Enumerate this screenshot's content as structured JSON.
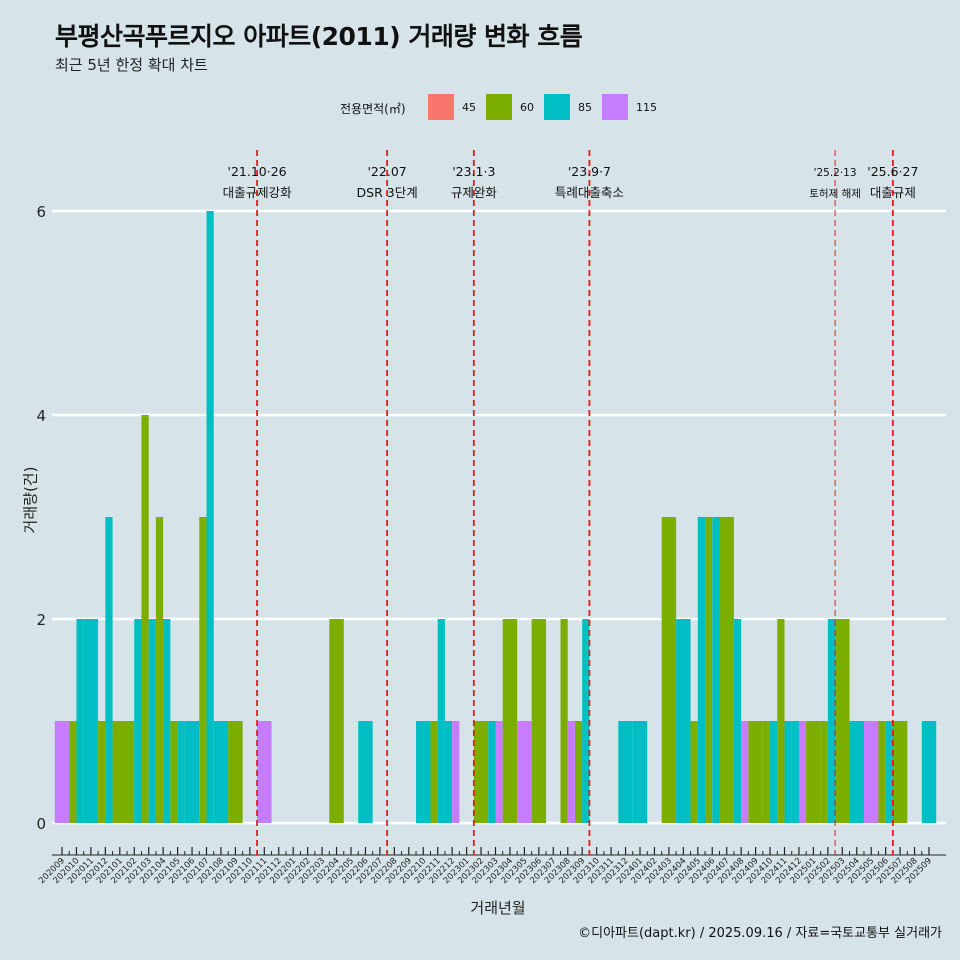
{
  "title": "부평산곡푸르지오 아파트(2011) 거래량 변화 흐름",
  "subtitle": "최근 5년 한정 확대 차트",
  "caption": "©디아파트(dapt.kr) / 2025.09.16 / 자료=국토교통부 실거래가",
  "legend": {
    "title": "전용면적(㎡)",
    "items": [
      {
        "label": "45",
        "color": "#F8766D"
      },
      {
        "label": "60",
        "color": "#7CAE00"
      },
      {
        "label": "85",
        "color": "#00BFC4"
      },
      {
        "label": "115",
        "color": "#C77CFF"
      }
    ]
  },
  "chart_data": {
    "type": "bar",
    "xlabel": "거래년월",
    "ylabel": "거래량(건)",
    "ylim": [
      0,
      6
    ],
    "yticks": [
      0,
      2,
      4,
      6
    ],
    "grid": "horizontal",
    "legend_position": "top",
    "categories": [
      "202009",
      "202010",
      "202011",
      "202012",
      "202101",
      "202102",
      "202103",
      "202104",
      "202105",
      "202106",
      "202107",
      "202108",
      "202109",
      "202110",
      "202111",
      "202112",
      "202201",
      "202202",
      "202203",
      "202204",
      "202205",
      "202206",
      "202207",
      "202208",
      "202209",
      "202210",
      "202211",
      "202212",
      "202301",
      "202302",
      "202303",
      "202304",
      "202305",
      "202306",
      "202307",
      "202308",
      "202309",
      "202310",
      "202311",
      "202312",
      "202401",
      "202402",
      "202403",
      "202404",
      "202405",
      "202406",
      "202407",
      "202408",
      "202409",
      "202410",
      "202411",
      "202412",
      "202501",
      "202502",
      "202503",
      "202504",
      "202505",
      "202506",
      "202507",
      "202508",
      "202509"
    ],
    "series": [
      {
        "name": "45",
        "values": [
          0,
          0,
          0,
          0,
          0,
          0,
          0,
          0,
          0,
          0,
          0,
          0,
          0,
          0,
          0,
          0,
          0,
          0,
          0,
          0,
          0,
          0,
          0,
          0,
          0,
          0,
          0,
          0,
          0,
          0,
          0,
          0,
          0,
          0,
          0,
          0,
          0,
          0,
          0,
          0,
          0,
          0,
          0,
          0,
          0,
          0,
          0,
          0,
          0,
          0,
          0,
          0,
          0,
          0,
          0,
          0,
          0,
          0,
          0,
          0,
          0
        ]
      },
      {
        "name": "60",
        "values": [
          0,
          1,
          0,
          1,
          1,
          1,
          4,
          3,
          1,
          0,
          3,
          0,
          1,
          0,
          0,
          0,
          0,
          0,
          0,
          2,
          0,
          0,
          0,
          0,
          0,
          0,
          1,
          0,
          0,
          1,
          0,
          2,
          0,
          2,
          0,
          2,
          1,
          0,
          0,
          0,
          0,
          0,
          3,
          0,
          1,
          3,
          3,
          0,
          1,
          1,
          2,
          0,
          1,
          1,
          2,
          0,
          0,
          1,
          1,
          0,
          0
        ]
      },
      {
        "name": "85",
        "values": [
          0,
          2,
          2,
          3,
          0,
          2,
          2,
          2,
          1,
          1,
          6,
          1,
          0,
          0,
          0,
          0,
          0,
          0,
          0,
          0,
          0,
          1,
          0,
          0,
          0,
          1,
          2,
          1,
          0,
          0,
          1,
          0,
          0,
          0,
          0,
          0,
          2,
          0,
          0,
          1,
          1,
          0,
          0,
          2,
          3,
          3,
          0,
          2,
          0,
          1,
          1,
          1,
          0,
          2,
          0,
          1,
          0,
          1,
          0,
          0,
          1
        ]
      },
      {
        "name": "115",
        "values": [
          1,
          0,
          0,
          0,
          0,
          0,
          0,
          0,
          0,
          0,
          0,
          0,
          0,
          0,
          1,
          0,
          0,
          0,
          0,
          0,
          0,
          0,
          0,
          0,
          0,
          0,
          0,
          1,
          0,
          0,
          1,
          0,
          1,
          0,
          0,
          1,
          0,
          0,
          0,
          0,
          0,
          0,
          0,
          0,
          0,
          0,
          0,
          1,
          0,
          0,
          0,
          1,
          0,
          0,
          0,
          0,
          1,
          0,
          0,
          0,
          0
        ]
      }
    ],
    "events": [
      {
        "category": "202110",
        "date": "'21.10·26",
        "label": "대출규제강화"
      },
      {
        "category": "202207",
        "date": "'22.07",
        "label": "DSR 3단계"
      },
      {
        "category": "202301",
        "date": "'23.1·3",
        "label": "규제완화"
      },
      {
        "category": "202309",
        "date": "'23.9·7",
        "label": "특례대출축소"
      },
      {
        "category": "202502",
        "date": "'25.2·13",
        "label": "토허제 해제"
      },
      {
        "category": "202506",
        "date": "'25.6·27",
        "label": "대출규제"
      }
    ]
  }
}
